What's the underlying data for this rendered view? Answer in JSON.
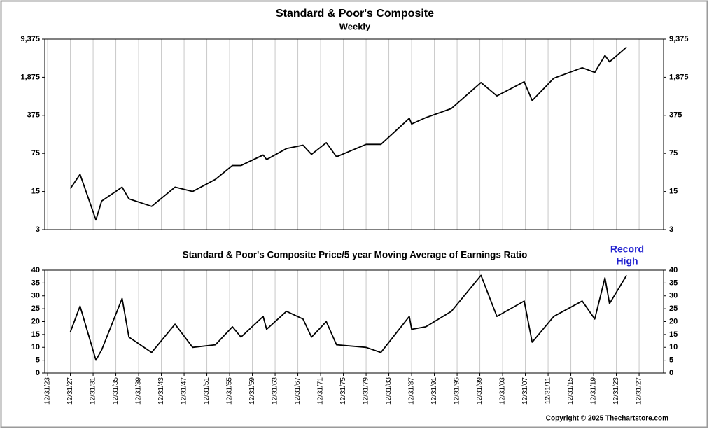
{
  "chart_data": [
    {
      "type": "line",
      "title": "Standard & Poor's Composite",
      "subtitle": "Weekly",
      "x": [
        1928,
        1929.7,
        1932.5,
        1933.5,
        1937.1,
        1938.3,
        1942.3,
        1946.4,
        1949.5,
        1953.5,
        1956.5,
        1958,
        1961.9,
        1962.5,
        1966,
        1968.9,
        1970.4,
        1973,
        1974.8,
        1980,
        1982.6,
        1987.6,
        1988,
        1990.5,
        1995,
        2000.2,
        2003,
        2007.8,
        2009.2,
        2013,
        2018,
        2020.2,
        2022,
        2022.8,
        2025.8
      ],
      "values": [
        17,
        31,
        4.5,
        10,
        18,
        11,
        8,
        18,
        15,
        25,
        45,
        45,
        70,
        58,
        92,
        106,
        72,
        118,
        65,
        110,
        110,
        330,
        260,
        340,
        500,
        1500,
        850,
        1550,
        700,
        1800,
        2800,
        2300,
        4700,
        3600,
        6700
      ],
      "color": "#000000",
      "log_scale": true,
      "xlim": [
        1923.5,
        2032.3
      ],
      "ylim": [
        3,
        9375
      ],
      "yticks": [
        3,
        15,
        75,
        375,
        {
          "value": 1875,
          "label": "1,875"
        },
        {
          "value": 9375,
          "label": "9,375"
        }
      ]
    },
    {
      "type": "line",
      "title": "Standard & Poor's Composite Price/5 year Moving Average of Earnings Ratio",
      "annotation": [
        "Record",
        "High"
      ],
      "x": [
        1928,
        1929.7,
        1932.5,
        1933.5,
        1937.1,
        1938.3,
        1942.3,
        1946.4,
        1949.5,
        1953.5,
        1956.5,
        1958,
        1961.9,
        1962.5,
        1966,
        1968.9,
        1970.4,
        1973,
        1974.8,
        1980,
        1982.6,
        1987.6,
        1988,
        1990.5,
        1995,
        2000.2,
        2003,
        2007.8,
        2009.2,
        2013,
        2018,
        2020.2,
        2022,
        2022.8,
        2025.8
      ],
      "values": [
        16,
        26,
        5,
        9,
        29,
        14,
        8,
        19,
        10,
        11,
        18,
        14,
        22,
        17,
        24,
        21,
        14,
        20,
        11,
        10,
        8,
        22,
        17,
        18,
        24,
        38,
        22,
        28,
        12,
        22,
        28,
        21,
        37,
        27,
        38
      ],
      "color": "#000000",
      "xlim": [
        1923.5,
        2032.3
      ],
      "xticks": [
        {
          "value": 1924,
          "label": "12/31/23"
        },
        {
          "value": 1928,
          "label": "12/31/27"
        },
        {
          "value": 1932,
          "label": "12/31/31"
        },
        {
          "value": 1936,
          "label": "12/31/35"
        },
        {
          "value": 1940,
          "label": "12/31/39"
        },
        {
          "value": 1944,
          "label": "12/31/43"
        },
        {
          "value": 1948,
          "label": "12/31/47"
        },
        {
          "value": 1952,
          "label": "12/31/51"
        },
        {
          "value": 1956,
          "label": "12/31/55"
        },
        {
          "value": 1960,
          "label": "12/31/59"
        },
        {
          "value": 1964,
          "label": "12/31/63"
        },
        {
          "value": 1968,
          "label": "12/31/67"
        },
        {
          "value": 1972,
          "label": "12/31/71"
        },
        {
          "value": 1976,
          "label": "12/31/75"
        },
        {
          "value": 1980,
          "label": "12/31/79"
        },
        {
          "value": 1984,
          "label": "12/31/83"
        },
        {
          "value": 1988,
          "label": "12/31/87"
        },
        {
          "value": 1992,
          "label": "12/31/91"
        },
        {
          "value": 1996,
          "label": "12/31/95"
        },
        {
          "value": 2000,
          "label": "12/31/99"
        },
        {
          "value": 2004,
          "label": "12/31/03"
        },
        {
          "value": 2008,
          "label": "12/31/07"
        },
        {
          "value": 2012,
          "label": "12/31/11"
        },
        {
          "value": 2016,
          "label": "12/31/15"
        },
        {
          "value": 2020,
          "label": "12/31/19"
        },
        {
          "value": 2024,
          "label": "12/31/23"
        },
        {
          "value": 2028,
          "label": "12/31/27"
        }
      ],
      "ylim": [
        0,
        40
      ],
      "yticks": [
        0,
        5,
        10,
        15,
        20,
        25,
        30,
        35,
        40
      ]
    }
  ],
  "copyright": "Copyright © 2025 Thechartstore.com"
}
